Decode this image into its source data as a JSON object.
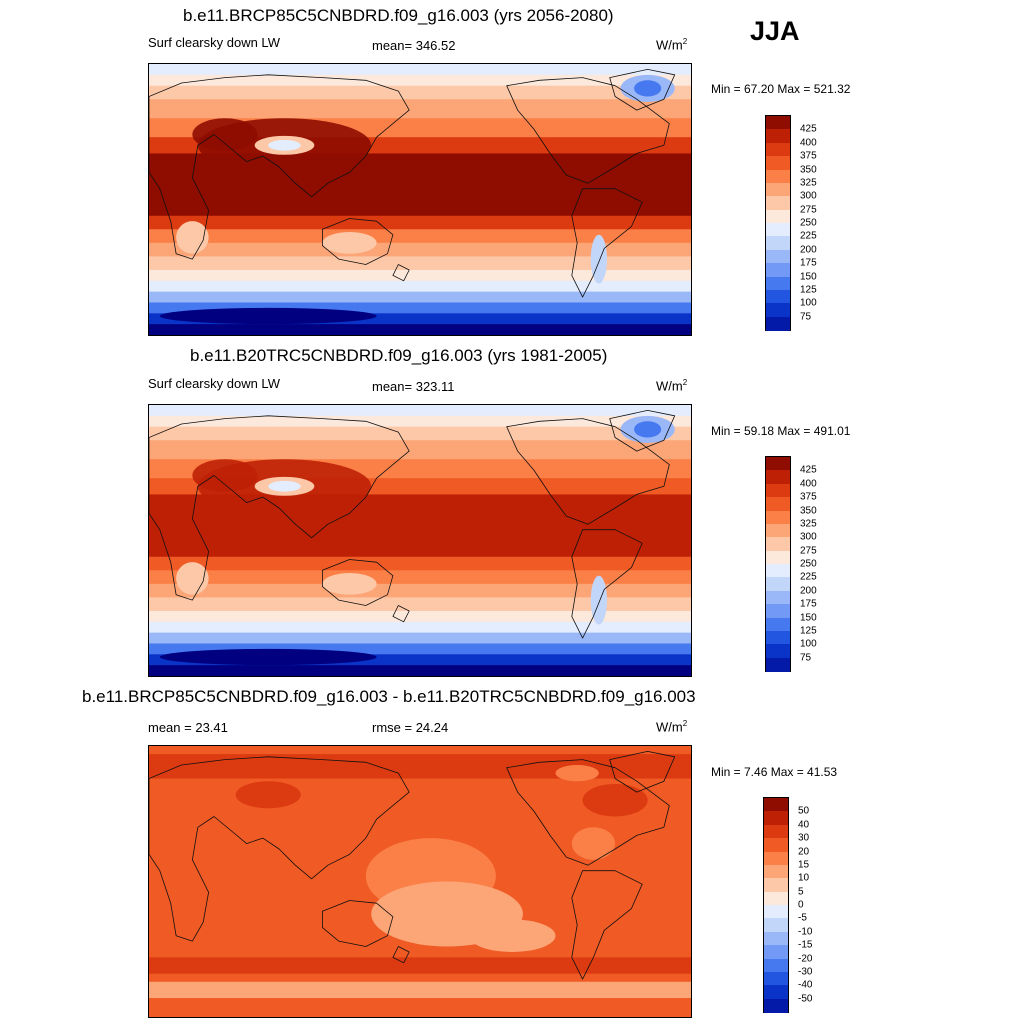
{
  "season": "JJA",
  "colorbar_colors": {
    "abs": [
      "#000080",
      "#0319a8",
      "#0a33c8",
      "#2255e0",
      "#4678f0",
      "#7199f5",
      "#9ab8f8",
      "#c2d6fa",
      "#e3edfd",
      "#fde9dc",
      "#fcc8a8",
      "#fca577",
      "#fb8048",
      "#f05a24",
      "#dc3a10",
      "#be2006",
      "#8e0c00"
    ],
    "diff": [
      "#000080",
      "#0319a8",
      "#0a33c8",
      "#2255e0",
      "#4678f0",
      "#7199f5",
      "#9ab8f8",
      "#c2d6fa",
      "#e3edfd",
      "#fde9dc",
      "#fcc8a8",
      "#fca577",
      "#fb8048",
      "#f05a24",
      "#dc3a10",
      "#be2006",
      "#8e0c00"
    ]
  },
  "panels": [
    {
      "title": "b.e11.BRCP85C5CNBDRD.f09_g16.003 (yrs 2056-2080)",
      "left_label": "Surf clearsky down LW",
      "center_label": "mean= 346.52",
      "units": "W/m",
      "units_sup": "2",
      "minmax": "Min =  67.20 Max = 521.32",
      "colorbar_labels": [
        "425",
        "400",
        "375",
        "350",
        "325",
        "300",
        "275",
        "250",
        "225",
        "200",
        "175",
        "150",
        "125",
        "100",
        "75"
      ],
      "tropics_level": 16,
      "subtrop_level": 14,
      "polar_s_level": 0
    },
    {
      "title": "b.e11.B20TRC5CNBDRD.f09_g16.003 (yrs 1981-2005)",
      "left_label": "Surf clearsky down LW",
      "center_label": "mean= 323.11",
      "units": "W/m",
      "units_sup": "2",
      "minmax": "Min =  59.18 Max = 491.01",
      "colorbar_labels": [
        "425",
        "400",
        "375",
        "350",
        "325",
        "300",
        "275",
        "250",
        "225",
        "200",
        "175",
        "150",
        "125",
        "100",
        "75"
      ],
      "tropics_level": 15,
      "subtrop_level": 13,
      "polar_s_level": 0
    },
    {
      "title": "b.e11.BRCP85C5CNBDRD.f09_g16.003 - b.e11.B20TRC5CNBDRD.f09_g16.003",
      "left_label": "mean =  23.41",
      "center_label": "rmse =  24.24",
      "units": "W/m",
      "units_sup": "2",
      "minmax": "Min =   7.46 Max =  41.53",
      "colorbar_labels": [
        "50",
        "40",
        "30",
        "20",
        "15",
        "10",
        "5",
        "0",
        "-5",
        "-10",
        "-15",
        "-20",
        "-30",
        "-40",
        "-50"
      ]
    }
  ]
}
